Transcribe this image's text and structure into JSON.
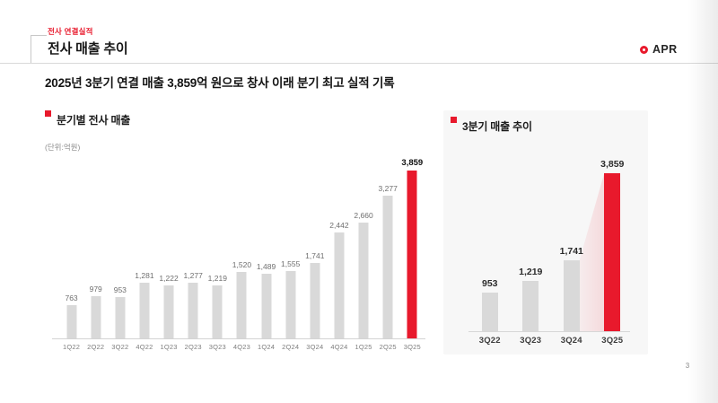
{
  "page": {
    "page_number": "3"
  },
  "header": {
    "eyebrow": "전사 연결실적",
    "title": "전사 매출 추이",
    "logo_text": "APR",
    "brand_red": "#e8192c"
  },
  "headline": "2025년 3분기 연결 매출 3,859억 원으로 창사 이래 분기 최고 실적 기록",
  "chart_data": [
    {
      "type": "bar",
      "title": "분기별 전사 매출",
      "unit_label": "(단위:억원)",
      "categories": [
        "1Q22",
        "2Q22",
        "3Q22",
        "4Q22",
        "1Q23",
        "2Q23",
        "3Q23",
        "4Q23",
        "1Q24",
        "2Q24",
        "3Q24",
        "4Q24",
        "1Q25",
        "2Q25",
        "3Q25"
      ],
      "values": [
        763,
        979,
        953,
        1281,
        1222,
        1277,
        1219,
        1520,
        1489,
        1555,
        1741,
        2442,
        2660,
        3277,
        3859
      ],
      "highlight_index": 14,
      "bar_color": "#d9d9d9",
      "highlight_color": "#e8192c",
      "ylim": [
        0,
        3859
      ],
      "grid": false,
      "legend_position": "top-left"
    },
    {
      "type": "bar",
      "title": "3분기 매출 추이",
      "categories": [
        "3Q22",
        "3Q23",
        "3Q24",
        "3Q25"
      ],
      "values": [
        953,
        1219,
        1741,
        3859
      ],
      "highlight_index": 3,
      "bar_color": "#d9d9d9",
      "highlight_color": "#e8192c",
      "growth_wedge": {
        "from_index": 2,
        "to_index": 3,
        "color": "#e8192c",
        "opacity_from": 0.05,
        "opacity_to": 0.13
      },
      "ylim": [
        0,
        3859
      ],
      "grid": false,
      "legend_position": "top-left"
    }
  ]
}
